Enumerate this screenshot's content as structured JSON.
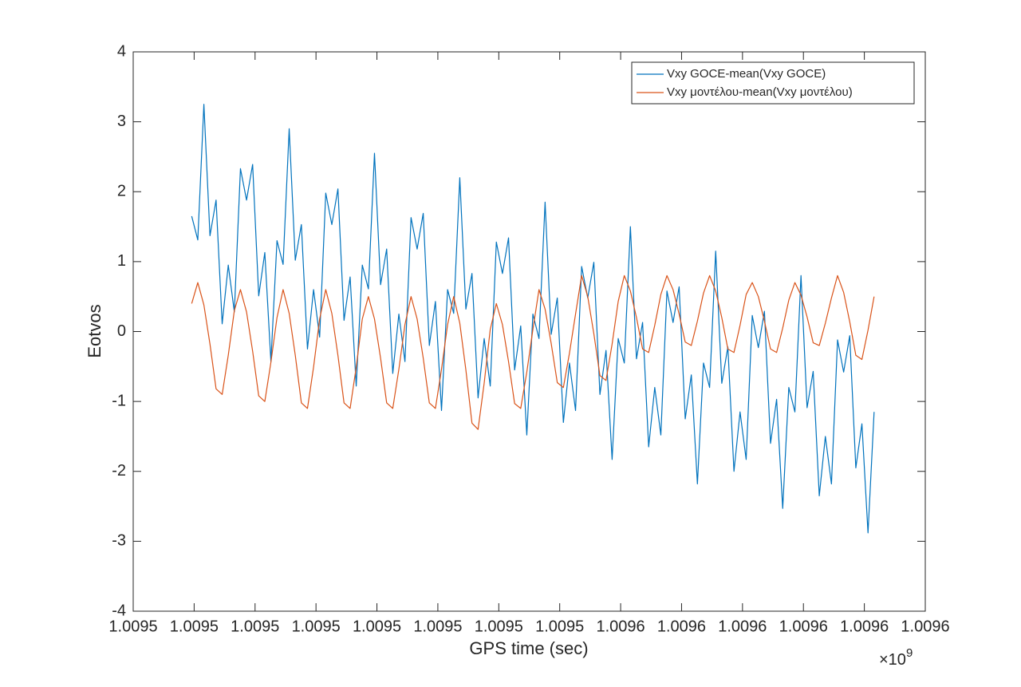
{
  "chart_data": {
    "type": "line",
    "x_label": "GPS time (sec)",
    "y_label": "Eotvos",
    "x_multiplier": "×10",
    "x_multiplier_exponent": "9",
    "xlim": [
      1009450000,
      1009580000
    ],
    "xticks": [
      {
        "value": 1009450000,
        "label": "1.0095"
      },
      {
        "value": 1009460000,
        "label": "1.0095"
      },
      {
        "value": 1009470000,
        "label": "1.0095"
      },
      {
        "value": 1009480000,
        "label": "1.0095"
      },
      {
        "value": 1009490000,
        "label": "1.0095"
      },
      {
        "value": 1009500000,
        "label": "1.0095"
      },
      {
        "value": 1009510000,
        "label": "1.0095"
      },
      {
        "value": 1009520000,
        "label": "1.0095"
      },
      {
        "value": 1009530000,
        "label": "1.0096"
      },
      {
        "value": 1009540000,
        "label": "1.0096"
      },
      {
        "value": 1009550000,
        "label": "1.0096"
      },
      {
        "value": 1009560000,
        "label": "1.0096"
      },
      {
        "value": 1009570000,
        "label": "1.0096"
      },
      {
        "value": 1009580000,
        "label": "1.0096"
      }
    ],
    "ylim": [
      -4,
      4
    ],
    "yticks": [
      -4,
      -3,
      -2,
      -1,
      0,
      1,
      2,
      3,
      4
    ],
    "grid": false,
    "legend": "upper right",
    "x": [
      1009459600,
      1009460600,
      1009461600,
      1009462600,
      1009463600,
      1009464600,
      1009465600,
      1009466600,
      1009467600,
      1009468600,
      1009469600,
      1009470600,
      1009471600,
      1009472600,
      1009473600,
      1009474600,
      1009475600,
      1009476600,
      1009477600,
      1009478600,
      1009479600,
      1009480600,
      1009481600,
      1009482600,
      1009483600,
      1009484600,
      1009485600,
      1009486600,
      1009487600,
      1009488600,
      1009489600,
      1009490600,
      1009491600,
      1009492600,
      1009493600,
      1009494600,
      1009495600,
      1009496600,
      1009497600,
      1009498600,
      1009499600,
      1009500600,
      1009501600,
      1009502600,
      1009503600,
      1009504600,
      1009505600,
      1009506600,
      1009507600,
      1009508600,
      1009509600,
      1009510600,
      1009511600,
      1009512600,
      1009513600,
      1009514600,
      1009515600,
      1009516600,
      1009517600,
      1009518600,
      1009519600,
      1009520600,
      1009521600,
      1009522600,
      1009523600,
      1009524600,
      1009525600,
      1009526600,
      1009527600,
      1009528600,
      1009529600,
      1009530600,
      1009531600,
      1009532600,
      1009533600,
      1009534600,
      1009535600,
      1009536600,
      1009537600,
      1009538600,
      1009539600,
      1009540600,
      1009541600,
      1009542600,
      1009543600,
      1009544600,
      1009545600,
      1009546600,
      1009547600,
      1009548600,
      1009549600,
      1009550600,
      1009551600,
      1009552600,
      1009553600,
      1009554600,
      1009555600,
      1009556600,
      1009557600,
      1009558600,
      1009559600,
      1009560600,
      1009561600,
      1009562600,
      1009563600,
      1009564600,
      1009565600,
      1009566600,
      1009567600,
      1009568600,
      1009569600,
      1009570600,
      1009571600
    ],
    "series": [
      {
        "name": "Vxy GOCE-mean(Vxy GOCE)",
        "color": "#0072BD",
        "values": [
          1.65,
          1.31,
          3.25,
          1.37,
          1.88,
          0.11,
          0.95,
          0.28,
          2.33,
          1.88,
          2.39,
          0.51,
          1.13,
          -0.43,
          1.3,
          0.96,
          2.9,
          1.02,
          1.53,
          -0.25,
          0.6,
          -0.08,
          1.98,
          1.53,
          2.04,
          0.16,
          0.78,
          -0.78,
          0.95,
          0.61,
          2.55,
          0.67,
          1.18,
          -0.6,
          0.25,
          -0.43,
          1.63,
          1.18,
          1.69,
          -0.2,
          0.43,
          -1.13,
          0.6,
          0.26,
          2.2,
          0.32,
          0.83,
          -0.95,
          -0.1,
          -0.78,
          1.28,
          0.83,
          1.34,
          -0.55,
          0.08,
          -1.48,
          0.25,
          -0.1,
          1.85,
          -0.04,
          0.48,
          -1.3,
          -0.45,
          -1.13,
          0.93,
          0.48,
          0.99,
          -0.9,
          -0.27,
          -1.83,
          -0.1,
          -0.45,
          1.5,
          -0.39,
          0.13,
          -1.65,
          -0.8,
          -1.48,
          0.58,
          0.13,
          0.64,
          -1.25,
          -0.62,
          -2.18,
          -0.45,
          -0.8,
          1.15,
          -0.74,
          -0.22,
          -2.0,
          -1.15,
          -1.83,
          0.23,
          -0.23,
          0.29,
          -1.6,
          -0.97,
          -2.53,
          -0.8,
          -1.15,
          0.8,
          -1.09,
          -0.57,
          -2.35,
          -1.5,
          -2.18,
          -0.12,
          -0.58,
          -0.06,
          -1.95,
          -1.32,
          -2.88,
          -1.15
        ]
      },
      {
        "name": "Vxy μοντέλου-mean(Vxy μοντέλου)",
        "color": "#D95319",
        "values": [
          0.4,
          0.7,
          0.38,
          -0.18,
          -0.82,
          -0.9,
          -0.34,
          0.3,
          0.6,
          0.28,
          -0.28,
          -0.92,
          -1.0,
          -0.44,
          0.2,
          0.6,
          0.26,
          -0.34,
          -1.02,
          -1.1,
          -0.51,
          0.18,
          0.6,
          0.26,
          -0.34,
          -1.02,
          -1.1,
          -0.51,
          0.18,
          0.5,
          0.18,
          -0.38,
          -1.02,
          -1.1,
          -0.54,
          0.1,
          0.5,
          0.18,
          -0.38,
          -1.02,
          -1.1,
          -0.54,
          0.1,
          0.5,
          0.12,
          -0.55,
          -1.31,
          -1.4,
          -0.74,
          0.03,
          0.4,
          0.1,
          -0.43,
          -1.03,
          -1.1,
          -0.58,
          0.03,
          0.6,
          0.32,
          -0.17,
          -0.73,
          -0.8,
          -0.31,
          0.25,
          0.8,
          0.5,
          -0.03,
          -0.63,
          -0.7,
          -0.18,
          0.43,
          0.8,
          0.58,
          0.2,
          -0.25,
          -0.3,
          0.09,
          0.53,
          0.8,
          0.6,
          0.25,
          -0.15,
          -0.2,
          0.15,
          0.55,
          0.8,
          0.58,
          0.2,
          -0.25,
          -0.3,
          0.09,
          0.53,
          0.7,
          0.5,
          0.15,
          -0.25,
          -0.3,
          0.05,
          0.45,
          0.7,
          0.52,
          0.21,
          -0.16,
          -0.2,
          0.12,
          0.48,
          0.8,
          0.56,
          0.14,
          -0.34,
          -0.4,
          0.02,
          0.5
        ]
      }
    ]
  }
}
